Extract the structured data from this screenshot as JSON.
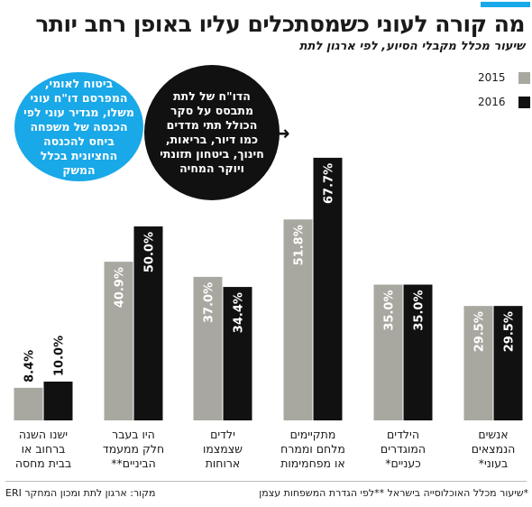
{
  "header": {
    "title": "מה קורה לעוני כשמסתכלים עליו באופן רחב יותר",
    "subtitle": "שיעור מכלל מקבלי הסיוע, לפי ארגון לתת"
  },
  "legend": [
    {
      "label": "2015",
      "color": "#a8a8a0"
    },
    {
      "label": "2016",
      "color": "#111111"
    }
  ],
  "notes": {
    "blue_bubble": "ביטוח לאומי, המפרסם דו\"ח עוני משלו, מגדיר עוני לפי הכנסה של משפחה ביחס להכנסה החציונית בכלל המשק",
    "black_bubble": "הדו\"ח של לתת מתבסס על סקר הכולל תתי מדדים כמו דיור, בריאות, חינוך, ביטחון תזונתי ויוקר המחיה",
    "arrow_glyph": "→"
  },
  "chart_data": {
    "type": "bar",
    "title": "מה קורה לעוני כשמסתכלים עליו באופן רחב יותר",
    "subtitle": "שיעור מכלל מקבלי הסיוע, לפי ארגון לתת",
    "categories": [
      "ישנו השנה ברחוב או בבית מחסה",
      "היו בעבר חלק ממעמד הביניים**",
      "ילדים שצמצמו ארוחות",
      "מתקיימים מלחם וממרח או מפחמימות",
      "הילדים המוגדרים כעניים*",
      "אנשים הנמצאים בעוני*"
    ],
    "category_lines": [
      [
        "ישנו השנה",
        "ברחוב או",
        "בבית מחסה"
      ],
      [
        "היו בעבר",
        "חלק ממעמד",
        "הביניים**"
      ],
      [
        "ילדים",
        "שצמצמו",
        "ארוחות"
      ],
      [
        "מתקיימים",
        "מלחם וממרח",
        "או מפחמימות"
      ],
      [
        "הילדים",
        "המוגדרים",
        "כעניים*"
      ],
      [
        "אנשים",
        "הנמצאים",
        "בעוני*"
      ]
    ],
    "series": [
      {
        "name": "2015",
        "values": [
          8.4,
          40.9,
          37.0,
          51.8,
          35.0,
          29.5
        ],
        "labels": [
          "8.4%",
          "40.9%",
          "37.0%",
          "51.8%",
          "35.0%",
          "29.5%"
        ],
        "color": "#a8a8a0"
      },
      {
        "name": "2016",
        "values": [
          10.0,
          50.0,
          34.4,
          67.7,
          35.0,
          29.5
        ],
        "labels": [
          "10.0%",
          "50.0%",
          "34.4%",
          "67.7%",
          "35.0%",
          "29.5%"
        ],
        "color": "#111111"
      }
    ],
    "ylim": [
      0,
      70
    ],
    "grid": false
  },
  "footer": {
    "source": "מקור: ארגון לתת ומכון המחקר ERI",
    "footnote": "*שיעור מכלל האוכלוסייה בישראל **לפי הגדרת המשפחות עצמן"
  }
}
